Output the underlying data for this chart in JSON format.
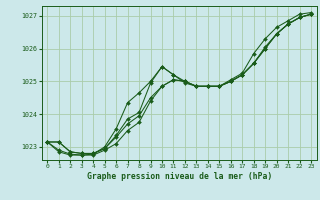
{
  "title": "Graphe pression niveau de la mer (hPa)",
  "background_color": "#cce8ea",
  "grid_color": "#aaccaa",
  "line_color": "#1a5c1a",
  "xlim": [
    -0.5,
    23.5
  ],
  "ylim": [
    1022.6,
    1027.3
  ],
  "yticks": [
    1023,
    1024,
    1025,
    1026,
    1027
  ],
  "xticks": [
    0,
    1,
    2,
    3,
    4,
    5,
    6,
    7,
    8,
    9,
    10,
    11,
    12,
    13,
    14,
    15,
    16,
    17,
    18,
    19,
    20,
    21,
    22,
    23
  ],
  "series": [
    [
      1023.15,
      1023.15,
      1022.85,
      1022.8,
      1022.8,
      1022.95,
      1023.3,
      1023.7,
      1023.95,
      1024.5,
      1024.85,
      1025.05,
      1025.0,
      1024.85,
      1024.85,
      1024.85,
      1025.0,
      1025.2,
      1025.55,
      1026.05,
      1026.45,
      1026.75,
      1026.95,
      1027.05
    ],
    [
      1023.15,
      1022.85,
      1022.75,
      1022.75,
      1022.75,
      1022.9,
      1023.1,
      1023.5,
      1023.75,
      1024.4,
      1024.85,
      1025.05,
      1025.0,
      1024.85,
      1024.85,
      1024.85,
      1025.0,
      1025.2,
      1025.55,
      1026.0,
      1026.45,
      1026.75,
      1026.95,
      1027.05
    ],
    [
      1023.15,
      1022.9,
      1022.78,
      1022.75,
      1022.78,
      1023.0,
      1023.55,
      1024.35,
      1024.65,
      1025.0,
      1025.45,
      1025.2,
      1025.0,
      1024.85,
      1024.85,
      1024.85,
      1025.0,
      1025.2,
      1025.55,
      1026.0,
      1026.45,
      1026.75,
      1026.95,
      1027.05
    ],
    [
      1023.15,
      1023.15,
      1022.85,
      1022.8,
      1022.8,
      1022.95,
      1023.35,
      1023.85,
      1024.05,
      1024.95,
      1025.45,
      1025.2,
      1024.95,
      1024.85,
      1024.85,
      1024.85,
      1025.05,
      1025.25,
      1025.85,
      1026.3,
      1026.65,
      1026.85,
      1027.05,
      1027.1
    ]
  ]
}
